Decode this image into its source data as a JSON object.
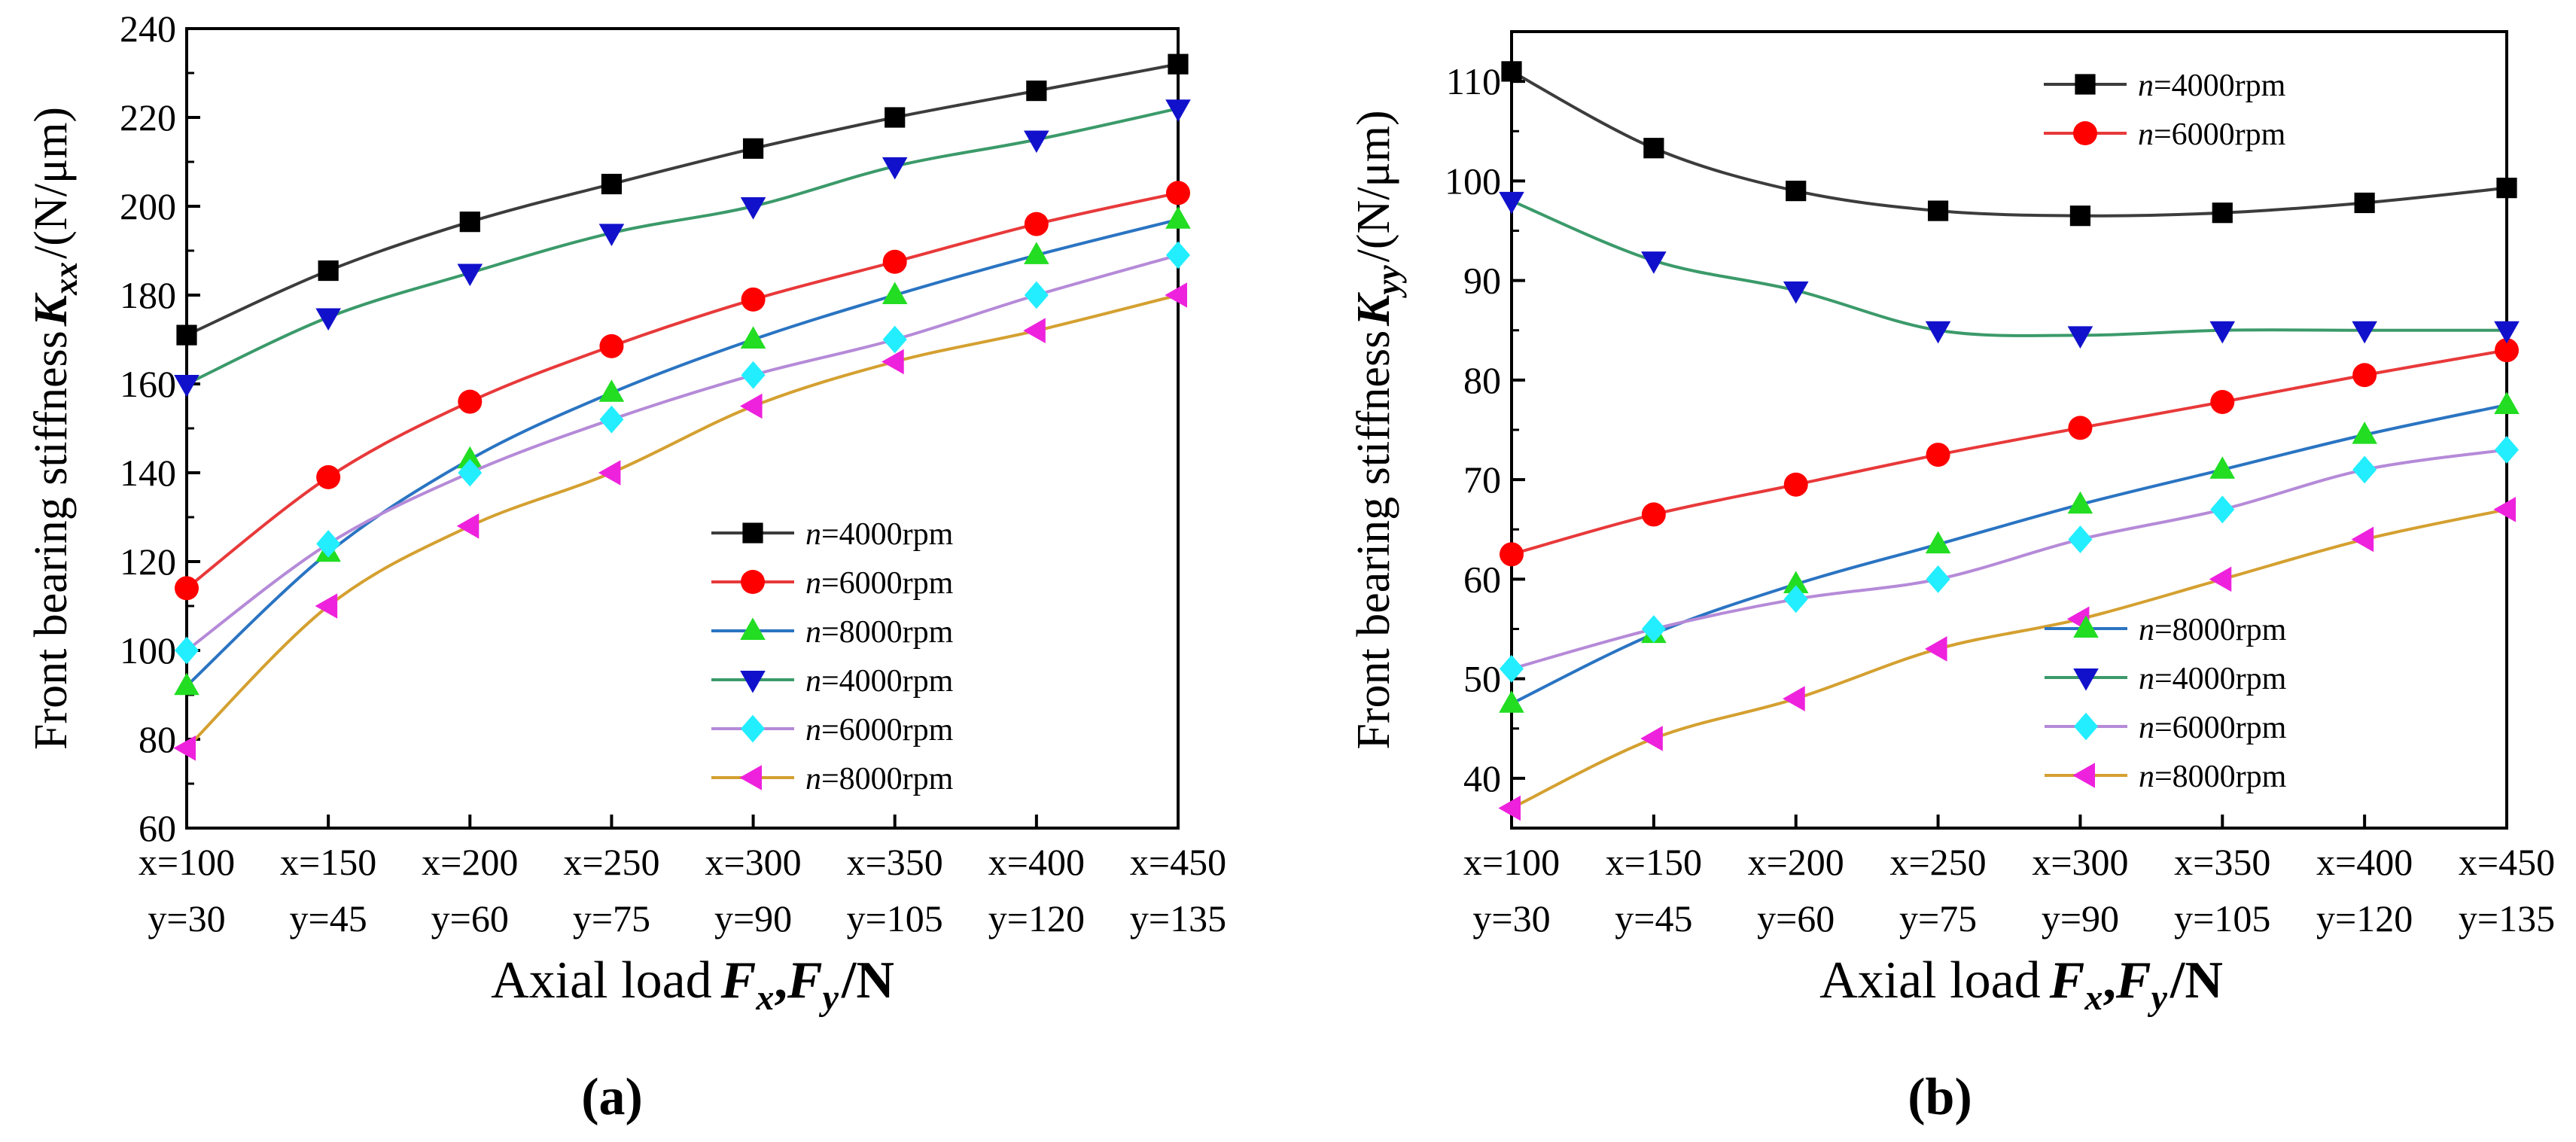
{
  "colors": {
    "4000_a": "#3c3c3c",
    "6000_a": "#e8393a",
    "8000_a": "#2a74c2",
    "4000_b": "#3b9a6a",
    "6000_b": "#b58ad8",
    "8000_b": "#d4a030",
    "marker_4000_a": "#000000",
    "marker_6000_a": "#ff0000",
    "marker_8000_a": "#22dd22",
    "marker_4000_b": "#1111cc",
    "marker_6000_b": "#22eeff",
    "marker_8000_b": "#ee22dd"
  },
  "chart_data": [
    {
      "type": "line",
      "panel_label": "(a)",
      "ylabel_prefix": "Front bearing stiffness",
      "ylabel_symbol": "K",
      "ylabel_sub": "xx",
      "ylabel_unit": "/(N/μm)",
      "xlabel_prefix": "Axial load",
      "xlabel_parts": [
        "F",
        "x",
        ",",
        "F",
        "y",
        "/N"
      ],
      "categories_line1": [
        "x=100",
        "x=150",
        "x=200",
        "x=250",
        "x=300",
        "x=350",
        "x=400",
        "x=450"
      ],
      "categories_line2": [
        "y=30",
        "y=45",
        "y=60",
        "y=75",
        "y=90",
        "y=105",
        "y=120",
        "y=135"
      ],
      "ylim": [
        60,
        240
      ],
      "yticks": [
        60,
        80,
        100,
        120,
        140,
        160,
        180,
        200,
        220,
        240
      ],
      "legend_position": "bottom-right",
      "series": [
        {
          "n": "n",
          "label": "=4000rpm",
          "marker": "square",
          "color_key": "4000_a",
          "marker_key": "marker_4000_a",
          "values": [
            171,
            185.5,
            196.5,
            205,
            213,
            220,
            226,
            232
          ]
        },
        {
          "n": "n",
          "label": "=6000rpm",
          "marker": "circle",
          "color_key": "6000_a",
          "marker_key": "marker_6000_a",
          "values": [
            114,
            139,
            156,
            168.5,
            179,
            187.5,
            196,
            203
          ]
        },
        {
          "n": "n",
          "label": "=8000rpm",
          "marker": "triangle-up",
          "color_key": "8000_a",
          "marker_key": "marker_8000_a",
          "values": [
            92,
            122,
            143,
            158,
            170,
            180,
            189,
            197
          ]
        },
        {
          "n": "n",
          "label": "=4000rpm",
          "marker": "triangle-down",
          "color_key": "4000_b",
          "marker_key": "marker_4000_b",
          "values": [
            160,
            175,
            185,
            194,
            200,
            209,
            215,
            222
          ]
        },
        {
          "n": "n",
          "label": "=6000rpm",
          "marker": "diamond",
          "color_key": "6000_b",
          "marker_key": "marker_6000_b",
          "values": [
            100,
            124,
            140,
            152,
            162,
            170,
            180,
            189
          ]
        },
        {
          "n": "n",
          "label": "=8000rpm",
          "marker": "triangle-left",
          "color_key": "8000_b",
          "marker_key": "marker_8000_b",
          "values": [
            78,
            110,
            128,
            140,
            155,
            165,
            172,
            180
          ]
        }
      ]
    },
    {
      "type": "line",
      "panel_label": "(b)",
      "ylabel_prefix": "Front bearing stiffness",
      "ylabel_symbol": "K",
      "ylabel_sub": "yy",
      "ylabel_unit": "/(N/μm)",
      "xlabel_prefix": "Axial load",
      "xlabel_parts": [
        "F",
        "x",
        ",",
        "F",
        "y",
        "/N"
      ],
      "categories_line1": [
        "x=100",
        "x=150",
        "x=200",
        "x=250",
        "x=300",
        "x=350",
        "x=400",
        "x=450"
      ],
      "categories_line2": [
        "y=30",
        "y=45",
        "y=60",
        "y=75",
        "y=90",
        "y=105",
        "y=120",
        "y=135"
      ],
      "ylim": [
        35,
        115
      ],
      "yticks": [
        40,
        50,
        60,
        70,
        80,
        90,
        100,
        110
      ],
      "legend_position": "top-right (first two) and lower-center (last four)",
      "series": [
        {
          "n": "n",
          "label": "=4000rpm",
          "marker": "square",
          "color_key": "4000_a",
          "marker_key": "marker_4000_a",
          "values": [
            111,
            103.3,
            99,
            97,
            96.5,
            96.8,
            97.8,
            99.3
          ]
        },
        {
          "n": "n",
          "label": "=6000rpm",
          "marker": "circle",
          "color_key": "6000_a",
          "marker_key": "marker_6000_a",
          "values": [
            62.5,
            66.5,
            69.5,
            72.5,
            75.2,
            77.8,
            80.5,
            83
          ]
        },
        {
          "n": "n",
          "label": "=8000rpm",
          "marker": "triangle-up",
          "color_key": "8000_a",
          "marker_key": "marker_8000_a",
          "values": [
            47.5,
            54.5,
            59.5,
            63.5,
            67.5,
            71,
            74.5,
            77.5
          ]
        },
        {
          "n": "n",
          "label": "=4000rpm",
          "marker": "triangle-down",
          "color_key": "4000_b",
          "marker_key": "marker_4000_b",
          "values": [
            98,
            92,
            89,
            85,
            84.5,
            85,
            85,
            85
          ]
        },
        {
          "n": "n",
          "label": "=6000rpm",
          "marker": "diamond",
          "color_key": "6000_b",
          "marker_key": "marker_6000_b",
          "values": [
            51,
            55,
            58,
            60,
            64,
            67,
            71,
            73
          ]
        },
        {
          "n": "n",
          "label": "=8000rpm",
          "marker": "triangle-left",
          "color_key": "8000_b",
          "marker_key": "marker_8000_b",
          "values": [
            37,
            44,
            48,
            53,
            56,
            60,
            64,
            67
          ]
        }
      ]
    }
  ]
}
